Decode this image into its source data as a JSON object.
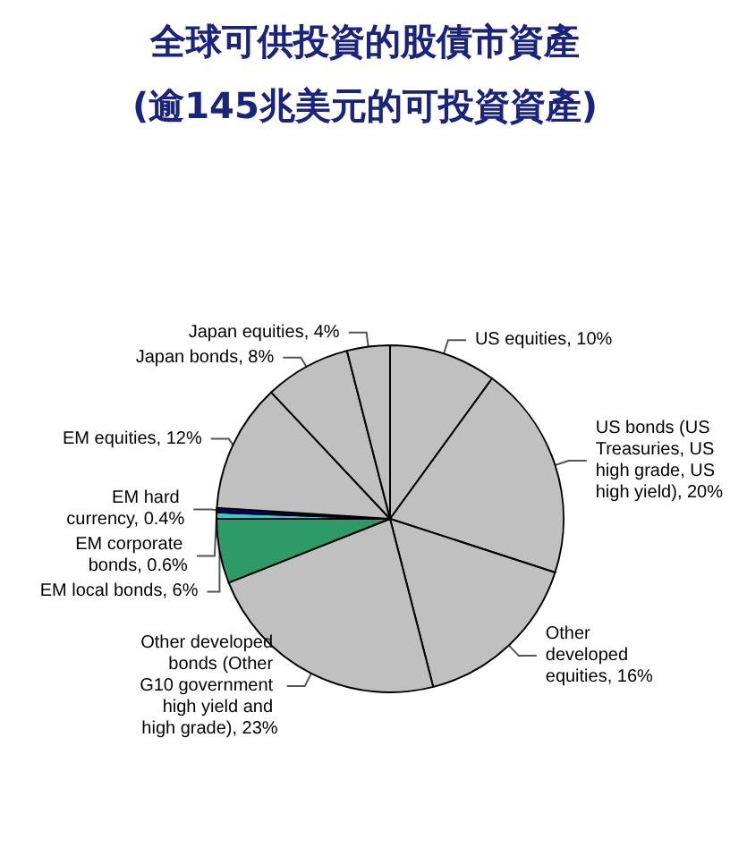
{
  "chart_data": {
    "type": "pie",
    "title": "全球可供投資的股債市資產",
    "subtitle": "(逾145兆美元的可投資資產)",
    "categories": [
      "US equities",
      "US bonds (US Treasuries, US high grade, US high yield)",
      "Other developed equities",
      "Other developed bonds (Other G10 government high yield and high grade)",
      "EM local bonds",
      "EM corporate bonds",
      "EM hard currency",
      "EM equities",
      "Japan bonds",
      "Japan equities"
    ],
    "values": [
      10,
      20,
      16,
      23,
      6,
      0.6,
      0.4,
      12,
      8,
      4
    ],
    "colors": [
      "#c0c0c0",
      "#c0c0c0",
      "#c0c0c0",
      "#c0c0c0",
      "#2e9a68",
      "#33cccc",
      "#000080",
      "#c0c0c0",
      "#c0c0c0",
      "#c0c0c0"
    ],
    "value_labels": [
      "10%",
      "20%",
      "16%",
      "23%",
      "6%",
      "0.6%",
      "0.4%",
      "12%",
      "8%",
      "4%"
    ],
    "legend": false
  }
}
